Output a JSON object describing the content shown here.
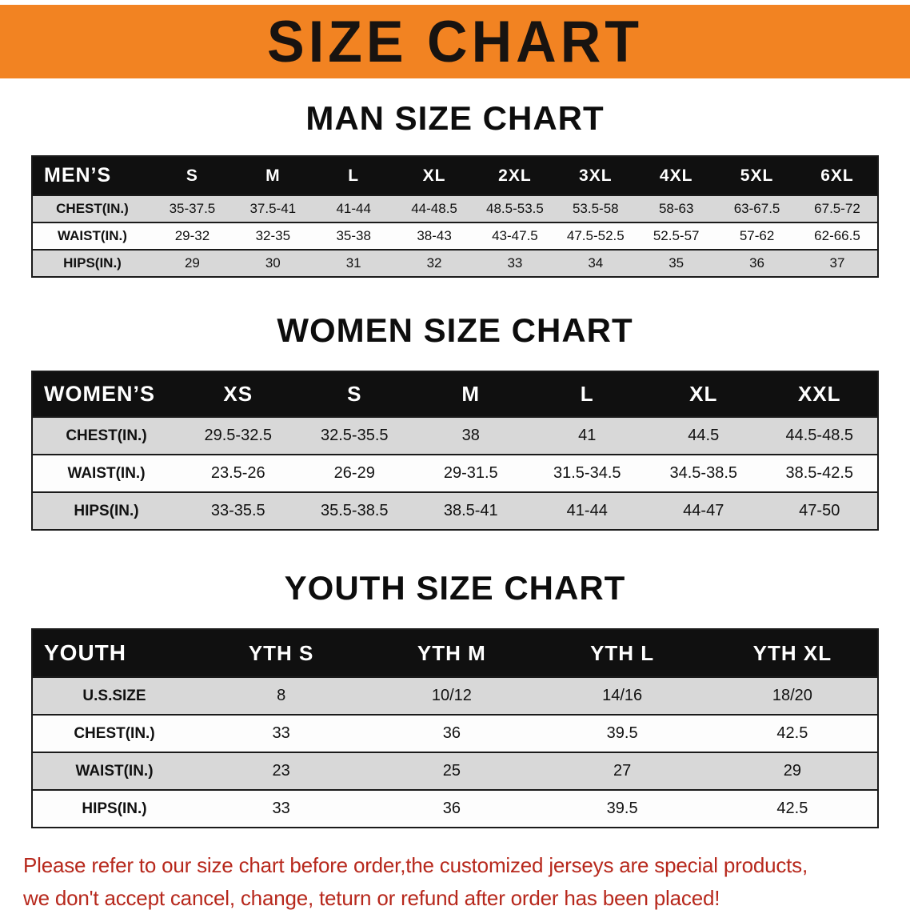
{
  "banner": {
    "title": "SIZE CHART"
  },
  "colors": {
    "banner_bg": "#f28322",
    "banner_text": "#181310",
    "table_header_bg": "#101010",
    "table_header_text": "#ffffff",
    "row_alt_bg": "#d8d8d8",
    "table_line": "#1a1a1a",
    "disclaimer_text": "#b7281c"
  },
  "tables": {
    "men": {
      "heading": "MAN SIZE CHART",
      "label": "MEN’S",
      "columns": [
        "S",
        "M",
        "L",
        "XL",
        "2XL",
        "3XL",
        "4XL",
        "5XL",
        "6XL"
      ],
      "rows": [
        {
          "label": "CHEST(IN.)",
          "values": [
            "35-37.5",
            "37.5-41",
            "41-44",
            "44-48.5",
            "48.5-53.5",
            "53.5-58",
            "58-63",
            "63-67.5",
            "67.5-72"
          ]
        },
        {
          "label": "WAIST(IN.)",
          "values": [
            "29-32",
            "32-35",
            "35-38",
            "38-43",
            "43-47.5",
            "47.5-52.5",
            "52.5-57",
            "57-62",
            "62-66.5"
          ]
        },
        {
          "label": "HIPS(IN.)",
          "values": [
            "29",
            "30",
            "31",
            "32",
            "33",
            "34",
            "35",
            "36",
            "37"
          ]
        }
      ]
    },
    "women": {
      "heading": "WOMEN SIZE CHART",
      "label": "WOMEN’S",
      "columns": [
        "XS",
        "S",
        "M",
        "L",
        "XL",
        "XXL"
      ],
      "rows": [
        {
          "label": "CHEST(IN.)",
          "values": [
            "29.5-32.5",
            "32.5-35.5",
            "38",
            "41",
            "44.5",
            "44.5-48.5"
          ]
        },
        {
          "label": "WAIST(IN.)",
          "values": [
            "23.5-26",
            "26-29",
            "29-31.5",
            "31.5-34.5",
            "34.5-38.5",
            "38.5-42.5"
          ]
        },
        {
          "label": "HIPS(IN.)",
          "values": [
            "33-35.5",
            "35.5-38.5",
            "38.5-41",
            "41-44",
            "44-47",
            "47-50"
          ]
        }
      ]
    },
    "youth": {
      "heading": "YOUTH SIZE CHART",
      "label": "YOUTH",
      "columns": [
        "YTH S",
        "YTH M",
        "YTH L",
        "YTH XL"
      ],
      "rows": [
        {
          "label": "U.S.SIZE",
          "values": [
            "8",
            "10/12",
            "14/16",
            "18/20"
          ]
        },
        {
          "label": "CHEST(IN.)",
          "values": [
            "33",
            "36",
            "39.5",
            "42.5"
          ]
        },
        {
          "label": "WAIST(IN.)",
          "values": [
            "23",
            "25",
            "27",
            "29"
          ]
        },
        {
          "label": "HIPS(IN.)",
          "values": [
            "33",
            "36",
            "39.5",
            "42.5"
          ]
        }
      ]
    }
  },
  "disclaimer": {
    "line1": "Please refer to our size chart before order,the customized jerseys are special products,",
    "line2": "we don't accept cancel, change, teturn or refund after order has been placed!"
  }
}
